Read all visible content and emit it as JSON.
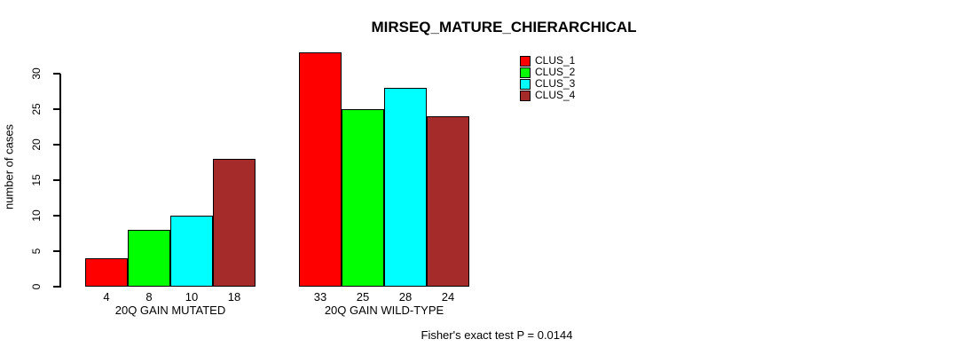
{
  "chart_data": {
    "type": "bar",
    "title": "MIRSEQ_MATURE_CHIERARCHICAL",
    "ylabel": "number of cases",
    "xlabel": "",
    "categories": [
      "20Q GAIN MUTATED",
      "20Q GAIN WILD-TYPE"
    ],
    "series": [
      {
        "name": "CLUS_1",
        "color": "#ff0000",
        "values": [
          4,
          33
        ]
      },
      {
        "name": "CLUS_2",
        "color": "#00ff00",
        "values": [
          8,
          25
        ]
      },
      {
        "name": "CLUS_3",
        "color": "#00ffff",
        "values": [
          10,
          28
        ]
      },
      {
        "name": "CLUS_4",
        "color": "#a52a2a",
        "values": [
          18,
          24
        ]
      }
    ],
    "yticks": [
      0,
      5,
      10,
      15,
      20,
      25,
      30
    ],
    "ylim": [
      0,
      33
    ],
    "bar_value_labels": [
      [
        4,
        8,
        10,
        18
      ],
      [
        33,
        25,
        28,
        24
      ]
    ],
    "legend_position": "top-right",
    "grid": false,
    "annotation": "Fisher's exact test P = 0.0144"
  },
  "colors": {
    "background": "#ffffff",
    "axis": "#000000",
    "text": "#000000"
  }
}
